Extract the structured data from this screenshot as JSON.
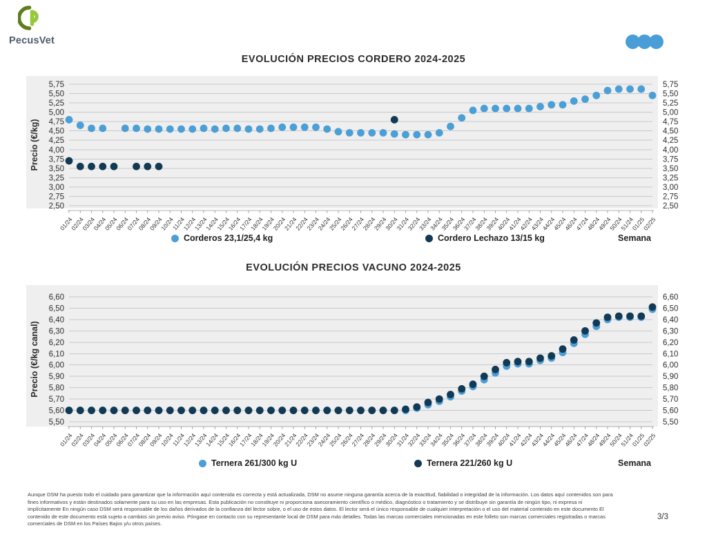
{
  "brand": {
    "name": "PecusVet",
    "colors": {
      "green_dark": "#5E7D1D",
      "green_light": "#96C83C",
      "text": "#4D5C6C"
    }
  },
  "header": {
    "dots_color": "#4A9ED7"
  },
  "chart_data": [
    {
      "type": "scatter",
      "title": "EVOLUCIÓN PRECIOS CORDERO 2024-2025",
      "xlabel": "Semana",
      "ylabel": "Precio (€/kg)",
      "ylim": [
        2.5,
        5.75
      ],
      "ytick_step": 0.25,
      "yticks": [
        "5,75",
        "5,50",
        "5,25",
        "5,00",
        "4,75",
        "4,50",
        "4,25",
        "4,00",
        "3,75",
        "3,50",
        "3,25",
        "3,00",
        "2,75",
        "2,50"
      ],
      "grid": true,
      "legend_position": "bottom",
      "categories": [
        "01/24",
        "02/24",
        "03/24",
        "04/24",
        "05/24",
        "06/24",
        "07/24",
        "08/24",
        "09/24",
        "10/24",
        "11/24",
        "12/24",
        "13/24",
        "14/24",
        "15/24",
        "16/24",
        "17/24",
        "18/24",
        "19/24",
        "20/24",
        "21/24",
        "22/24",
        "23/24",
        "24/24",
        "25/24",
        "26/24",
        "27/24",
        "28/24",
        "29/24",
        "30/24",
        "31/24",
        "32/24",
        "33/24",
        "34/24",
        "35/24",
        "36/24",
        "37/24",
        "38/24",
        "39/24",
        "40/24",
        "41/24",
        "42/24",
        "43/24",
        "44/24",
        "45/24",
        "46/24",
        "47/24",
        "48/24",
        "49/24",
        "50/24",
        "51/24",
        "01/25",
        "02/25"
      ],
      "series": [
        {
          "name": "Corderos 23,1/25,4 kg",
          "color": "#4C9FD6",
          "values": [
            4.8,
            4.65,
            4.57,
            4.57,
            null,
            4.57,
            4.57,
            4.55,
            4.55,
            4.55,
            4.55,
            4.55,
            4.57,
            4.55,
            4.57,
            4.57,
            4.55,
            4.55,
            4.57,
            4.6,
            4.6,
            4.6,
            4.6,
            4.55,
            4.48,
            4.45,
            4.45,
            4.45,
            4.45,
            4.42,
            4.4,
            4.4,
            4.4,
            4.45,
            4.62,
            4.85,
            5.05,
            5.1,
            5.1,
            5.1,
            5.1,
            5.1,
            5.15,
            5.2,
            5.2,
            5.3,
            5.35,
            5.45,
            5.58,
            5.62,
            5.62,
            5.62,
            5.45
          ]
        },
        {
          "name": "Cordero Lechazo 13/15 kg",
          "color": "#123A55",
          "values": [
            3.7,
            3.55,
            3.55,
            3.55,
            3.55,
            null,
            3.55,
            3.55,
            3.55,
            null,
            null,
            null,
            null,
            null,
            null,
            null,
            null,
            null,
            null,
            null,
            null,
            null,
            null,
            null,
            null,
            null,
            null,
            null,
            null,
            4.8,
            null,
            null,
            null,
            null,
            null,
            null,
            null,
            null,
            null,
            null,
            null,
            null,
            null,
            null,
            null,
            null,
            null,
            null,
            null,
            null,
            null,
            null,
            null
          ]
        }
      ]
    },
    {
      "type": "scatter",
      "title": "EVOLUCIÓN PRECIOS VACUNO 2024-2025",
      "xlabel": "Semana",
      "ylabel": "Precio (€/kg canal)",
      "ylim": [
        5.5,
        6.6
      ],
      "ytick_step": 0.1,
      "yticks": [
        "6,60",
        "6,50",
        "6,40",
        "6,30",
        "6,20",
        "6,10",
        "6,00",
        "5,90",
        "5,80",
        "5,70",
        "5,60",
        "5,50"
      ],
      "grid": true,
      "legend_position": "bottom",
      "categories": [
        "01/24",
        "02/24",
        "03/24",
        "04/24",
        "05/24",
        "06/24",
        "07/24",
        "08/24",
        "09/24",
        "10/24",
        "11/24",
        "12/24",
        "13/24",
        "14/24",
        "15/24",
        "16/24",
        "17/24",
        "18/24",
        "19/24",
        "20/24",
        "21/24",
        "22/24",
        "23/24",
        "24/24",
        "25/24",
        "26/24",
        "27/24",
        "28/24",
        "29/24",
        "30/24",
        "31/24",
        "32/24",
        "33/24",
        "34/24",
        "35/24",
        "36/24",
        "37/24",
        "38/24",
        "39/24",
        "40/24",
        "41/24",
        "42/24",
        "43/24",
        "44/24",
        "45/24",
        "46/24",
        "47/24",
        "48/24",
        "49/24",
        "50/24",
        "51/24",
        "01/25",
        "02/25"
      ],
      "series": [
        {
          "name": "Ternera 261/300 kg U",
          "color": "#4C9FD6",
          "values": [
            5.6,
            5.6,
            5.6,
            5.6,
            5.6,
            5.6,
            5.6,
            5.6,
            5.6,
            5.6,
            5.6,
            5.6,
            5.6,
            5.6,
            5.6,
            5.6,
            5.6,
            5.6,
            5.6,
            5.6,
            5.6,
            5.6,
            5.6,
            5.6,
            5.6,
            5.6,
            5.6,
            5.6,
            5.6,
            5.6,
            5.6,
            5.62,
            5.65,
            5.68,
            5.72,
            5.77,
            5.81,
            5.87,
            5.93,
            5.99,
            6.01,
            6.01,
            6.04,
            6.06,
            6.11,
            6.19,
            6.27,
            6.34,
            6.4,
            6.42,
            6.42,
            6.42,
            6.49
          ]
        },
        {
          "name": "Ternera 221/260 kg U",
          "color": "#123A55",
          "values": [
            5.6,
            5.6,
            5.6,
            5.6,
            5.6,
            5.6,
            5.6,
            5.6,
            5.6,
            5.6,
            5.6,
            5.6,
            5.6,
            5.6,
            5.6,
            5.6,
            5.6,
            5.6,
            5.6,
            5.6,
            5.6,
            5.6,
            5.6,
            5.6,
            5.6,
            5.6,
            5.6,
            5.6,
            5.6,
            5.6,
            5.61,
            5.63,
            5.67,
            5.7,
            5.74,
            5.79,
            5.83,
            5.9,
            5.96,
            6.02,
            6.03,
            6.03,
            6.06,
            6.08,
            6.14,
            6.22,
            6.3,
            6.37,
            6.42,
            6.43,
            6.43,
            6.43,
            6.51
          ]
        }
      ]
    }
  ],
  "footer": {
    "disclaimer_lines": [
      "Aunque DSM ha puesto todo el cuidado para garantizar que la información aquí contenida es correcta y está actualizada, DSM no asume ninguna garantía acerca de la exactitud, fiabilidad o integridad de la información. Los datos aquí contenidos son para",
      "fines informativos y están destinados solamente para su uso en las empresas. Esta publicación no constituye ni proporciona asesoramiento científico o médico, diagnóstico o tratamiento y se distribuye sin garantía de ningún tipo, ni expresa ni",
      "implícitamente En ningún caso DSM será responsable de los daños derivados de la confianza del lector sobre, o el uso de estos datos. El lector será el único responsable de cualquier interpretación o el uso del material contenido en este documento El",
      "contenido de este documento está sujeto a cambios sin previo aviso. Póngase en contacto con su representante local de DSM para más detalles. Todas las marcas comerciales mencionadas en este folleto son marcas comerciales registradas o marcas",
      "comerciales de DSM en los Países Bajos y/u otros países."
    ],
    "page_label": "3/3"
  }
}
